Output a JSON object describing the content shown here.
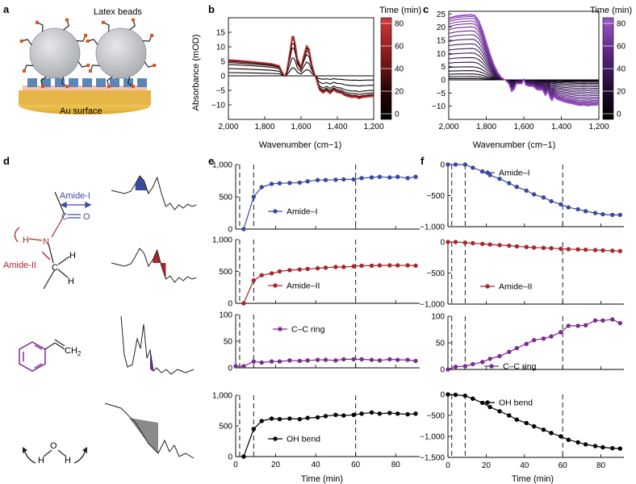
{
  "panels": {
    "a": {
      "label": "a",
      "beads_label": "Latex beads",
      "surface_label": "Au surface",
      "colors": {
        "bead": "#c7c9cc",
        "linker": "#5b86b8",
        "gold": "#e3b63a",
        "tip": "#d9541e"
      }
    },
    "b": {
      "label": "b",
      "colorbar_title": "Time (min)",
      "colorbar_ticks": [
        "80",
        "60",
        "40",
        "20",
        "0"
      ],
      "colors": [
        "#000000",
        "#5a1512",
        "#a81e24",
        "#d34a4a",
        "#f2d3d3"
      ]
    },
    "c": {
      "label": "c",
      "colorbar_title": "Time (min)",
      "colorbar_ticks": [
        "80",
        "60",
        "40",
        "20",
        "0"
      ],
      "colors": [
        "#000000",
        "#33194f",
        "#6f2d9a",
        "#9b57c6",
        "#e6d4f3"
      ]
    },
    "d": {
      "label": "d",
      "amide1_label": "Amide-I",
      "amide2_label": "Amide-II",
      "atoms": {
        "C": "C",
        "O": "O",
        "N": "N",
        "H": "H"
      },
      "ch2_label": "CH",
      "ch2_sub": "2",
      "colors": {
        "amide1": "#3a4a9e",
        "amide2": "#a8272d",
        "ring": "#7a2d8f",
        "water": "#8a8a8a"
      }
    },
    "e": {
      "label": "e"
    },
    "f": {
      "label": "f"
    }
  },
  "chart_data": [
    {
      "type": "line",
      "id": "b",
      "title": "",
      "xlabel": "Wavenumber (cm−1)",
      "ylabel": "Absorbance (mOD)",
      "xlim": [
        2000,
        1200
      ],
      "ylim": [
        -15,
        20
      ],
      "xticks": [
        2000,
        1800,
        1600,
        1400,
        1200
      ],
      "xtick_labels": [
        "2,000",
        "1,800",
        "1,600",
        "1,400",
        "1,200"
      ],
      "yticks": [
        -10,
        -5,
        0,
        5,
        10,
        15
      ],
      "profile": {
        "x": [
          2000,
          1900,
          1800,
          1760,
          1720,
          1705,
          1690,
          1680,
          1660,
          1650,
          1640,
          1630,
          1620,
          1600,
          1585,
          1570,
          1555,
          1540,
          1520,
          1500,
          1480,
          1460,
          1440,
          1420,
          1400,
          1380,
          1360,
          1340,
          1320,
          1300,
          1280,
          1260,
          1240,
          1220,
          1200
        ],
        "y": [
          5.6,
          5.1,
          4.5,
          4.2,
          3.5,
          1.5,
          -0.2,
          1.5,
          9.0,
          13.6,
          13.6,
          10.5,
          6.0,
          3.2,
          7.2,
          10.5,
          9.3,
          4.0,
          -0.5,
          -4.8,
          -6.0,
          -5.2,
          -6.2,
          -5.0,
          -5.8,
          -6.0,
          -6.8,
          -7.2,
          -7.5,
          -7.4,
          -7.9,
          -7.5,
          -7.4,
          -7.2,
          -7.2
        ]
      },
      "series": [
        {
          "time_min": 0,
          "scale": 0.0
        },
        {
          "time_min": 4,
          "scale": 0.2
        },
        {
          "time_min": 8,
          "scale": 0.45
        },
        {
          "time_min": 12,
          "scale": 0.7
        },
        {
          "time_min": 16,
          "scale": 0.82
        },
        {
          "time_min": 20,
          "scale": 0.9
        },
        {
          "time_min": 30,
          "scale": 0.94
        },
        {
          "time_min": 40,
          "scale": 0.96
        },
        {
          "time_min": 50,
          "scale": 0.97
        },
        {
          "time_min": 60,
          "scale": 0.98
        },
        {
          "time_min": 70,
          "scale": 0.99
        },
        {
          "time_min": 80,
          "scale": 0.995
        },
        {
          "time_min": 90,
          "scale": 1.0
        }
      ]
    },
    {
      "type": "line",
      "id": "c",
      "title": "",
      "xlabel": "Wavenumber (cm−1)",
      "ylabel": "",
      "xlim": [
        2000,
        1200
      ],
      "ylim": [
        -15,
        26
      ],
      "xticks": [
        2000,
        1800,
        1600,
        1400,
        1200
      ],
      "xtick_labels": [
        "2,000",
        "1,800",
        "1,600",
        "1,400",
        "1,200"
      ],
      "yticks": [
        -10,
        -5,
        0,
        5,
        10,
        15,
        20,
        25
      ],
      "profile": {
        "x": [
          2000,
          1960,
          1920,
          1880,
          1860,
          1840,
          1820,
          1800,
          1780,
          1760,
          1740,
          1720,
          1700,
          1680,
          1665,
          1650,
          1640,
          1630,
          1610,
          1600,
          1590,
          1570,
          1550,
          1530,
          1500,
          1485,
          1470,
          1460,
          1450,
          1440,
          1420,
          1400,
          1380,
          1350,
          1320,
          1300,
          1280,
          1260,
          1240,
          1220,
          1200
        ],
        "y": [
          23.5,
          24.3,
          24.6,
          24.8,
          24.5,
          22.5,
          19.0,
          14.5,
          10.0,
          6.0,
          3.0,
          1.0,
          0.0,
          -1.5,
          -4.5,
          -3.5,
          -1.5,
          -1.5,
          -1.5,
          0.3,
          -2.0,
          -2.5,
          -2.5,
          -3.8,
          -4.0,
          -6.0,
          -4.5,
          -6.8,
          -8.0,
          -6.5,
          -7.5,
          -8.0,
          -8.5,
          -9.0,
          -9.5,
          -9.8,
          -9.6,
          -9.9,
          -9.7,
          -9.6,
          -9.5
        ]
      },
      "series": [
        {
          "time_min": 0,
          "scale": 0.0
        },
        {
          "time_min": 4,
          "scale": 0.02
        },
        {
          "time_min": 8,
          "scale": 0.05
        },
        {
          "time_min": 12,
          "scale": 0.09
        },
        {
          "time_min": 16,
          "scale": 0.14
        },
        {
          "time_min": 20,
          "scale": 0.2
        },
        {
          "time_min": 24,
          "scale": 0.27
        },
        {
          "time_min": 28,
          "scale": 0.34
        },
        {
          "time_min": 32,
          "scale": 0.41
        },
        {
          "time_min": 36,
          "scale": 0.48
        },
        {
          "time_min": 40,
          "scale": 0.55
        },
        {
          "time_min": 45,
          "scale": 0.62
        },
        {
          "time_min": 50,
          "scale": 0.69
        },
        {
          "time_min": 55,
          "scale": 0.75
        },
        {
          "time_min": 60,
          "scale": 0.81
        },
        {
          "time_min": 65,
          "scale": 0.86
        },
        {
          "time_min": 70,
          "scale": 0.9
        },
        {
          "time_min": 75,
          "scale": 0.94
        },
        {
          "time_min": 80,
          "scale": 0.97
        },
        {
          "time_min": 85,
          "scale": 0.99
        },
        {
          "time_min": 90,
          "scale": 1.0
        }
      ]
    },
    {
      "type": "line",
      "id": "e",
      "xlabel": "Time (min)",
      "ylabel": "",
      "xlim": [
        0,
        92
      ],
      "xticks": [
        0,
        20,
        40,
        60,
        80
      ],
      "vlines": [
        2,
        9,
        60
      ],
      "subplots": [
        {
          "name": "Amide–I",
          "color": "#3a4a9e",
          "ylim": [
            0,
            1000
          ],
          "yticks": [
            0,
            500,
            1000
          ],
          "ytick_labels": [
            "0",
            "500",
            "1,000"
          ],
          "x": [
            0,
            4,
            9,
            13,
            18,
            22,
            27,
            32,
            36,
            41,
            45,
            50,
            54,
            59,
            63,
            68,
            72,
            77,
            81,
            86,
            90
          ],
          "y": [
            null,
            0,
            500,
            650,
            700,
            710,
            715,
            720,
            740,
            760,
            760,
            765,
            770,
            770,
            790,
            800,
            810,
            800,
            810,
            790,
            810
          ]
        },
        {
          "name": "Amide–II",
          "color": "#a8272d",
          "ylim": [
            0,
            1000
          ],
          "yticks": [
            0,
            500,
            1000
          ],
          "ytick_labels": [
            "0",
            "500",
            "1,000"
          ],
          "x": [
            0,
            4,
            9,
            13,
            18,
            22,
            27,
            32,
            36,
            41,
            45,
            50,
            54,
            59,
            63,
            68,
            72,
            77,
            81,
            86,
            90
          ],
          "y": [
            null,
            0,
            360,
            440,
            470,
            500,
            520,
            530,
            540,
            550,
            560,
            570,
            570,
            580,
            590,
            590,
            595,
            595,
            595,
            595,
            590
          ]
        },
        {
          "name": "C–C ring",
          "color": "#7a2d8f",
          "ylim": [
            0,
            100
          ],
          "yticks": [
            0,
            50,
            100
          ],
          "ytick_labels": [
            "0",
            "50",
            "100"
          ],
          "x": [
            0,
            4,
            9,
            13,
            18,
            22,
            27,
            32,
            36,
            41,
            45,
            50,
            54,
            59,
            63,
            68,
            72,
            77,
            81,
            86,
            90
          ],
          "y": [
            3,
            3,
            12,
            10,
            12,
            12,
            14,
            13,
            14,
            15,
            15,
            14,
            16,
            16,
            16,
            15,
            14,
            16,
            15,
            15,
            13
          ]
        },
        {
          "name": "OH bend",
          "color": "#000000",
          "ylim": [
            0,
            1000
          ],
          "yticks": [
            0,
            500,
            1000
          ],
          "ytick_labels": [
            "0",
            "500",
            "1,000"
          ],
          "x": [
            0,
            4,
            9,
            13,
            18,
            22,
            27,
            32,
            36,
            41,
            45,
            50,
            54,
            59,
            63,
            68,
            72,
            77,
            81,
            86,
            90
          ],
          "y": [
            null,
            0,
            450,
            580,
            620,
            610,
            620,
            610,
            630,
            640,
            660,
            680,
            670,
            680,
            700,
            720,
            700,
            710,
            700,
            690,
            700
          ]
        }
      ]
    },
    {
      "type": "line",
      "id": "f",
      "xlabel": "Time (min)",
      "ylabel": "",
      "xlim": [
        0,
        92
      ],
      "xticks": [
        0,
        20,
        40,
        60,
        80
      ],
      "vlines": [
        2,
        9,
        60
      ],
      "subplots": [
        {
          "name": "Amide–I",
          "color": "#3a4a9e",
          "ylim": [
            -1000,
            0
          ],
          "yticks": [
            -1000,
            -500,
            0
          ],
          "ytick_labels": [
            "−1,000",
            "−500",
            "0"
          ],
          "x": [
            0,
            4,
            9,
            13,
            18,
            22,
            27,
            32,
            36,
            41,
            45,
            50,
            54,
            59,
            63,
            68,
            72,
            77,
            81,
            86,
            90
          ],
          "y": [
            0,
            0,
            0,
            -50,
            -110,
            -170,
            -230,
            -300,
            -360,
            -420,
            -480,
            -530,
            -590,
            -640,
            -690,
            -720,
            -750,
            -780,
            -800,
            -810,
            -810
          ]
        },
        {
          "name": "Amide–II",
          "color": "#a8272d",
          "ylim": [
            -1000,
            0
          ],
          "yticks": [
            -1000,
            -500,
            0
          ],
          "ytick_labels": [
            "−1,000",
            "−500",
            "0"
          ],
          "x": [
            0,
            4,
            9,
            13,
            18,
            22,
            27,
            32,
            36,
            41,
            45,
            50,
            54,
            59,
            63,
            68,
            72,
            77,
            81,
            86,
            90
          ],
          "y": [
            0,
            0,
            -10,
            -20,
            -30,
            -40,
            -50,
            -60,
            -70,
            -80,
            -90,
            -95,
            -100,
            -110,
            -115,
            -120,
            -125,
            -130,
            -135,
            -140,
            -145
          ]
        },
        {
          "name": "C–C ring",
          "color": "#7a2d8f",
          "ylim": [
            0,
            100
          ],
          "yticks": [
            0,
            50,
            100
          ],
          "ytick_labels": [
            "0",
            "50",
            "100"
          ],
          "x": [
            0,
            4,
            9,
            13,
            18,
            22,
            27,
            32,
            36,
            41,
            45,
            50,
            54,
            59,
            63,
            68,
            72,
            77,
            81,
            86,
            90
          ],
          "y": [
            0,
            5,
            6,
            10,
            14,
            20,
            25,
            33,
            40,
            48,
            55,
            58,
            62,
            70,
            82,
            82,
            83,
            92,
            92,
            94,
            87
          ]
        },
        {
          "name": "OH bend",
          "color": "#000000",
          "ylim": [
            -1500,
            0
          ],
          "yticks": [
            -1500,
            -1000,
            -500,
            0
          ],
          "ytick_labels": [
            "−1,500",
            "−1,000",
            "−500",
            "0"
          ],
          "x": [
            0,
            4,
            9,
            13,
            18,
            22,
            27,
            32,
            36,
            41,
            45,
            50,
            54,
            59,
            63,
            68,
            72,
            77,
            81,
            86,
            90
          ],
          "y": [
            0,
            -10,
            -30,
            -100,
            -200,
            -300,
            -400,
            -500,
            -600,
            -680,
            -760,
            -840,
            -920,
            -1000,
            -1080,
            -1140,
            -1190,
            -1230,
            -1260,
            -1280,
            -1290
          ]
        }
      ]
    }
  ]
}
